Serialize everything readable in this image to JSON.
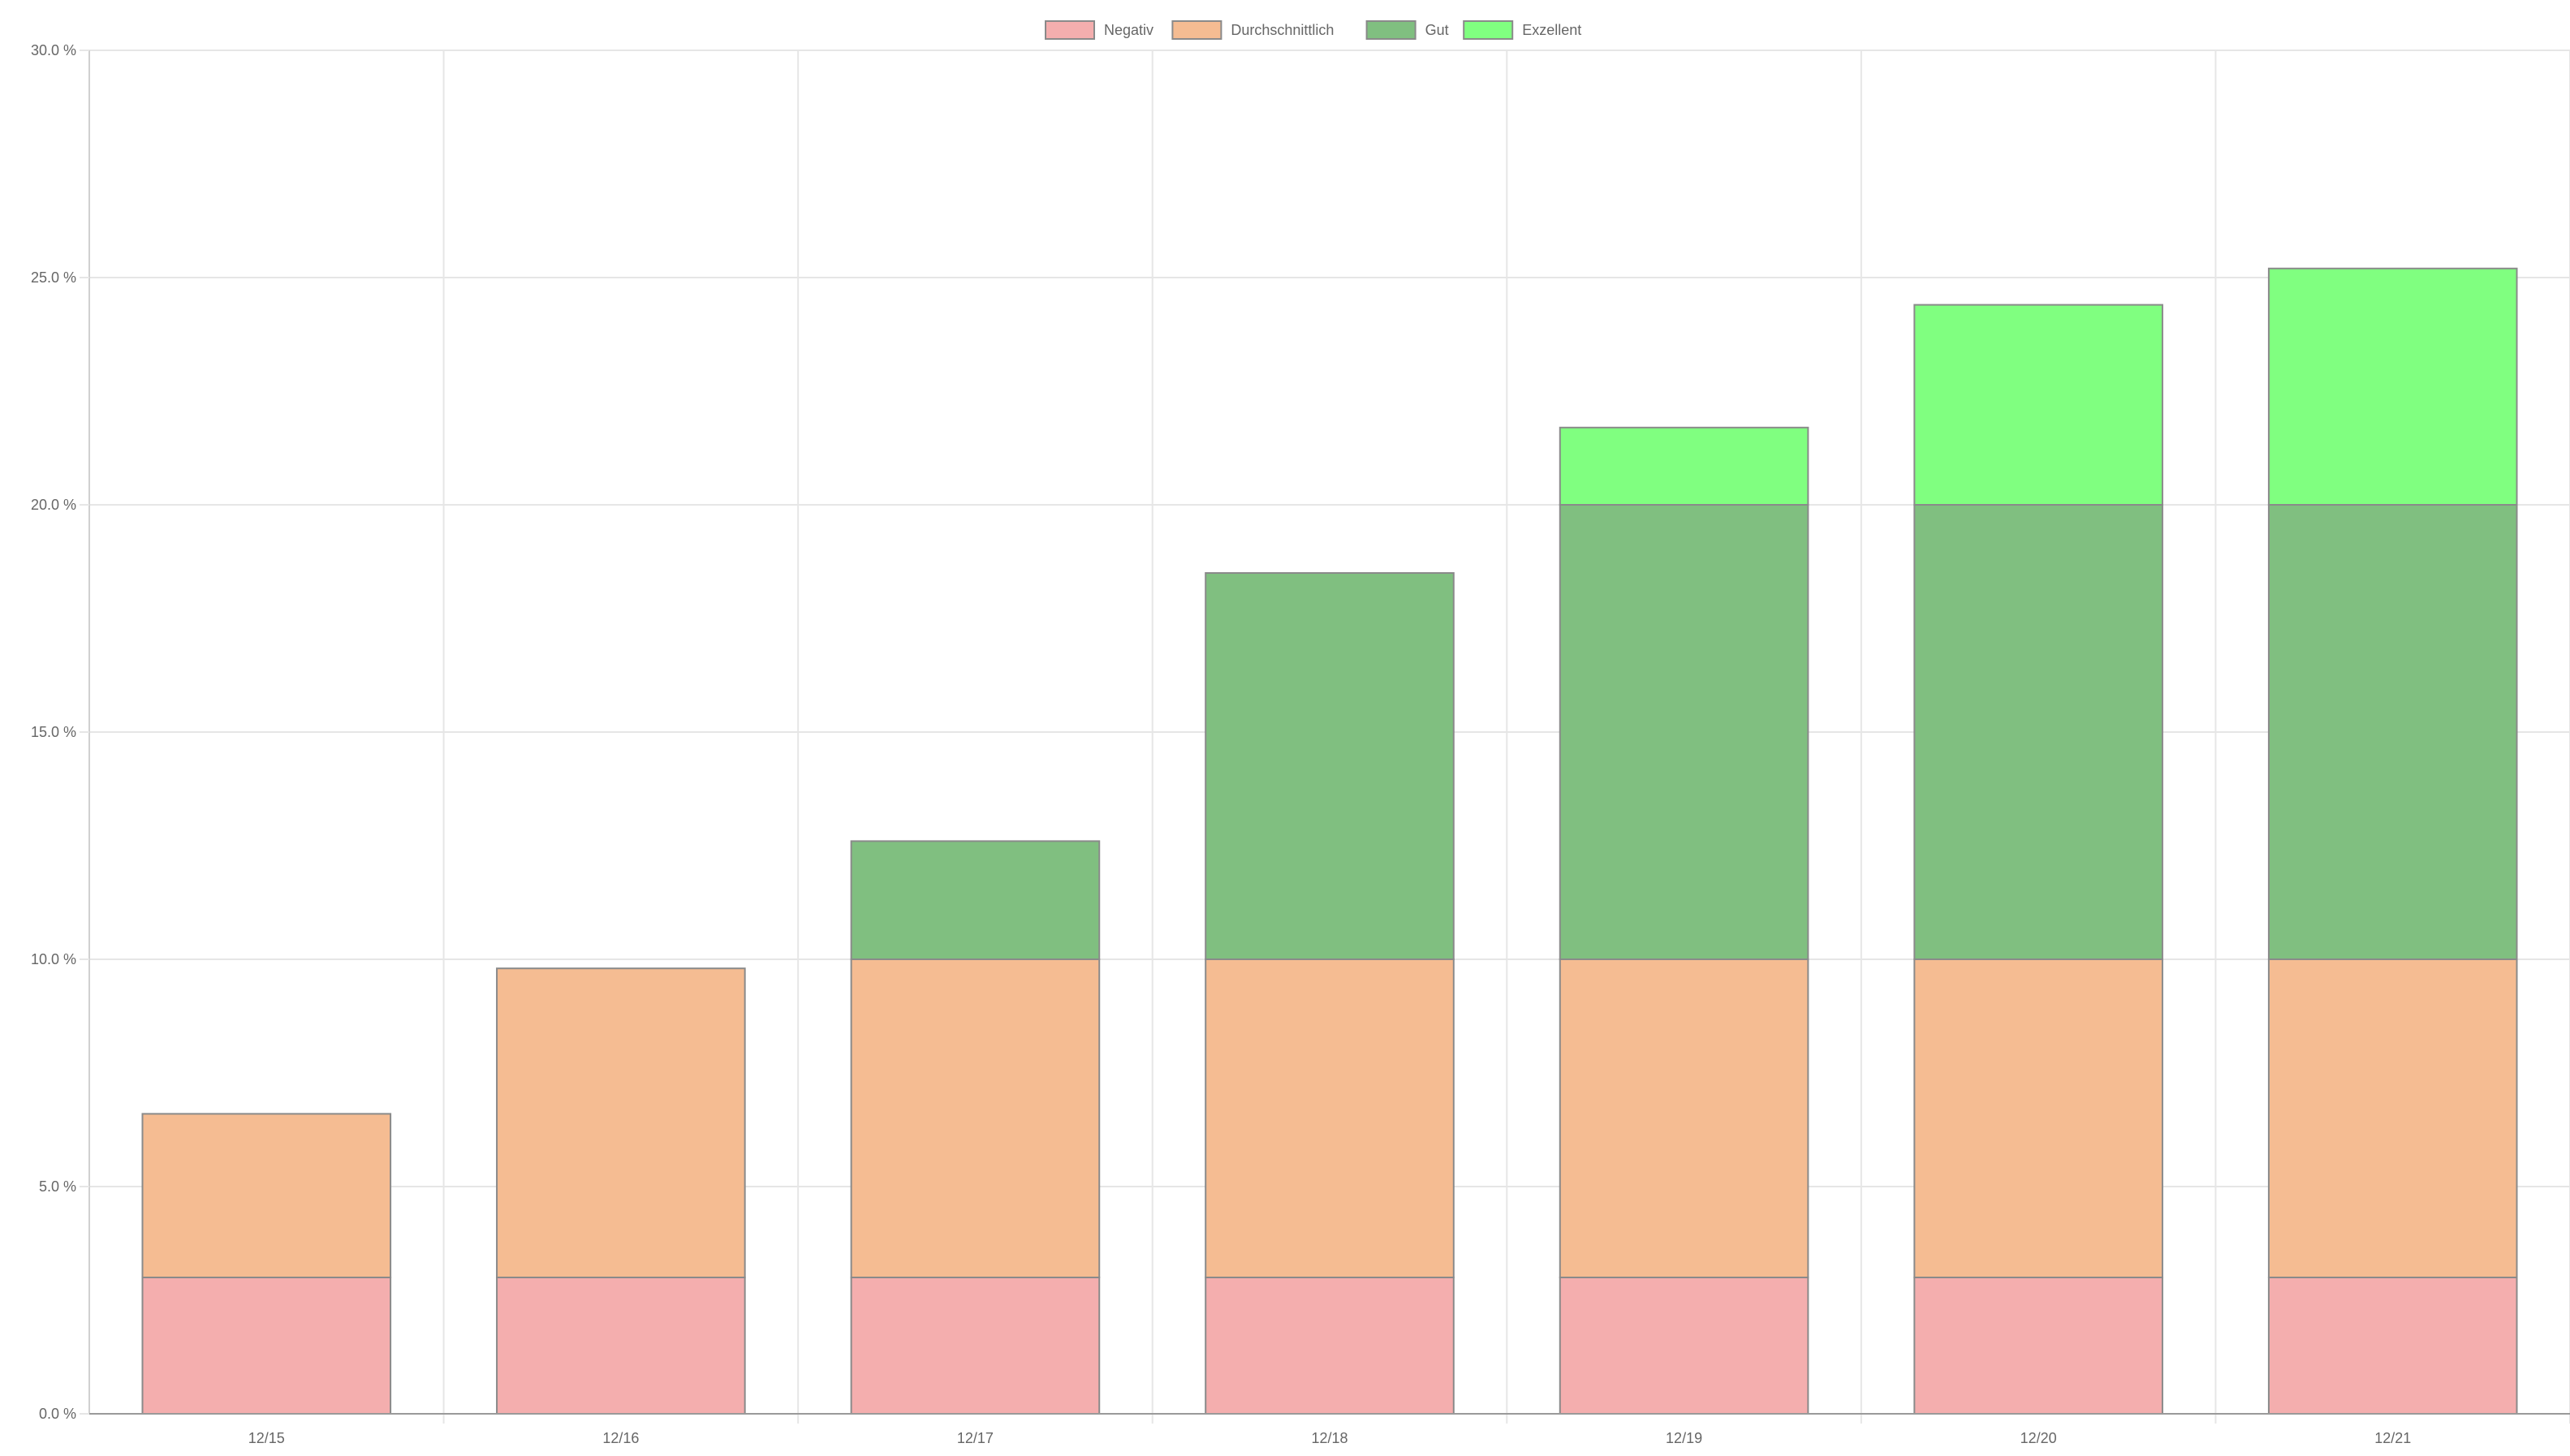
{
  "chart_data": {
    "type": "bar",
    "stacked": true,
    "categories": [
      "12/15",
      "12/16",
      "12/17",
      "12/18",
      "12/19",
      "12/20",
      "12/21"
    ],
    "series": [
      {
        "name": "Negativ",
        "color": "#f4aeae",
        "values": [
          3.0,
          3.0,
          3.0,
          3.0,
          3.0,
          3.0,
          3.0
        ]
      },
      {
        "name": "Durchschnittlich",
        "color": "#f5bc92",
        "values": [
          3.6,
          6.8,
          7.0,
          7.0,
          7.0,
          7.0,
          7.0
        ]
      },
      {
        "name": "Gut",
        "color": "#80bf80",
        "values": [
          0,
          0,
          2.6,
          8.5,
          10.0,
          10.0,
          10.0
        ]
      },
      {
        "name": "Exzellent",
        "color": "#80ff80",
        "values": [
          0,
          0,
          0,
          0,
          1.7,
          4.4,
          5.2
        ]
      }
    ],
    "ylim": [
      0,
      30
    ],
    "yticks": [
      "0.0 %",
      "5.0 %",
      "10.0 %",
      "15.0 %",
      "20.0 %",
      "25.0 %",
      "30.0 %"
    ],
    "grid": true,
    "legend_position": "top-center"
  }
}
